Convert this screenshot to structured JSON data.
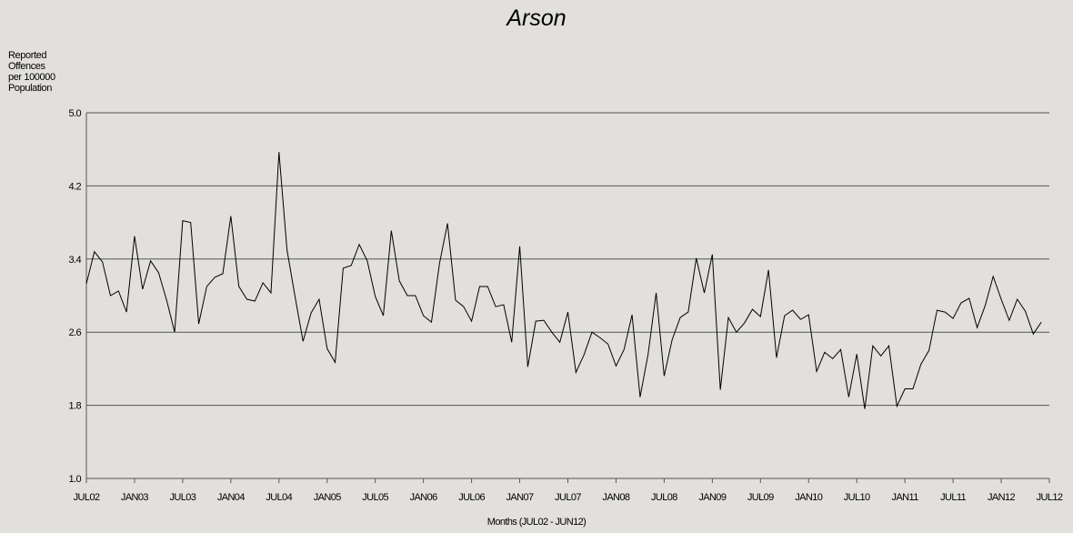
{
  "chart_data": {
    "type": "line",
    "title": "Arson",
    "ylabel": [
      "Reported",
      "Offences",
      "per 100000",
      "Population"
    ],
    "xlabel": "Months (JUL02 - JUN12)",
    "ylim": [
      1.0,
      5.0
    ],
    "yticks": [
      "1.0",
      "1.8",
      "2.6",
      "3.4",
      "4.2",
      "5.0"
    ],
    "grid": true,
    "x_tick_labels": [
      "JUL02",
      "JAN03",
      "JUL03",
      "JAN04",
      "JUL04",
      "JAN05",
      "JUL05",
      "JAN06",
      "JUL06",
      "JAN07",
      "JUL07",
      "JAN08",
      "JUL08",
      "JAN09",
      "JUL09",
      "JAN10",
      "JUL10",
      "JAN11",
      "JUL11",
      "JAN12",
      "JUL12"
    ],
    "x_start": "JUL02",
    "x_end": "JUN12",
    "line_color": "#000000",
    "series": [
      {
        "values": [
          3.13,
          3.48,
          3.37,
          3.0,
          3.05,
          2.82,
          3.65,
          3.07,
          3.38,
          3.25,
          2.95,
          2.6,
          3.82,
          3.8,
          2.69,
          3.1,
          3.2,
          3.24,
          3.87,
          3.1,
          2.96,
          2.94,
          3.14,
          3.03,
          4.57,
          3.5,
          2.99,
          2.5,
          2.81,
          2.96,
          2.42,
          2.27,
          3.3,
          3.33,
          3.56,
          3.38,
          2.99,
          2.78,
          3.71,
          3.16,
          3.0,
          3.0,
          2.78,
          2.71,
          3.35,
          3.79,
          2.95,
          2.88,
          2.72,
          3.1,
          3.1,
          2.88,
          2.9,
          2.49,
          3.54,
          2.22,
          2.72,
          2.73,
          2.6,
          2.49,
          2.82,
          2.16,
          2.35,
          2.6,
          2.54,
          2.47,
          2.23,
          2.41,
          2.79,
          1.89,
          2.36,
          3.03,
          2.12,
          2.52,
          2.76,
          2.82,
          3.41,
          3.03,
          3.45,
          1.97,
          2.76,
          2.6,
          2.7,
          2.85,
          2.77,
          3.28,
          2.32,
          2.78,
          2.84,
          2.74,
          2.79,
          2.17,
          2.38,
          2.31,
          2.41,
          1.89,
          2.36,
          1.76,
          2.45,
          2.34,
          2.45,
          1.79,
          1.98,
          1.98,
          2.25,
          2.4,
          2.84,
          2.82,
          2.75,
          2.92,
          2.97,
          2.65,
          2.89,
          3.21,
          2.96,
          2.73,
          2.96,
          2.83,
          2.58,
          2.71
        ]
      }
    ]
  }
}
